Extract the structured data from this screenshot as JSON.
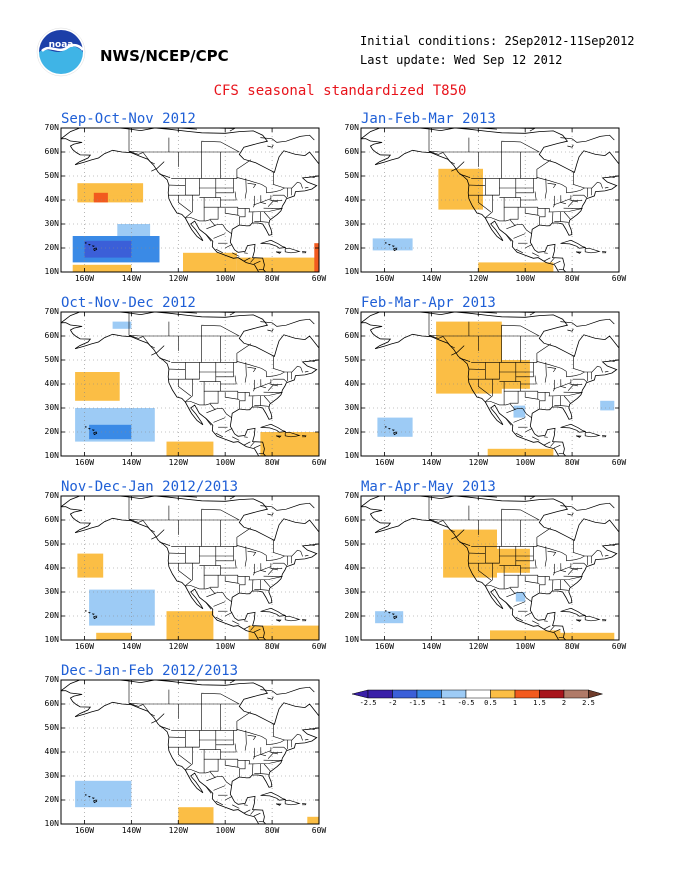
{
  "header": {
    "org": "NWS/NCEP/CPC",
    "initial_conditions": "Initial conditions: 2Sep2012-11Sep2012",
    "last_update": "Last update: Wed Sep 12 2012",
    "title": "CFS seasonal standardized T850",
    "logo_icon": "noaa-logo-icon"
  },
  "axes": {
    "y_ticks": [
      "70N",
      "60N",
      "50N",
      "40N",
      "30N",
      "20N",
      "10N"
    ],
    "x_ticks": [
      "160W",
      "140W",
      "120W",
      "100W",
      "80W",
      "60W"
    ]
  },
  "colors": {
    "title": "#e8141c",
    "panel_title": "#1f5fd6",
    "scale": [
      "#3a1fa8",
      "#3b5fd8",
      "#3a8ae6",
      "#9dcbf5",
      "#ffffff",
      "#ffffff",
      "#fbbe45",
      "#f25a1e",
      "#a8141c",
      "#b07a68",
      "#6e3b2a"
    ]
  },
  "panels": [
    {
      "title": "Sep-Oct-Nov 2012",
      "anomalies": [
        {
          "lat_min": 39,
          "lat_max": 47,
          "lon_min": -163,
          "lon_max": -135,
          "level": 1
        },
        {
          "lat_min": 42,
          "lat_max": 46,
          "lon_min": -150,
          "lon_max": -138,
          "level": 1
        },
        {
          "lat_min": 39,
          "lat_max": 43,
          "lon_min": -156,
          "lon_max": -150,
          "level": 1.5
        },
        {
          "lat_min": 24,
          "lat_max": 30,
          "lon_min": -146,
          "lon_max": -132,
          "level": -0.5
        },
        {
          "lat_min": 14,
          "lat_max": 25,
          "lon_min": -165,
          "lon_max": -128,
          "level": -1
        },
        {
          "lat_min": 16,
          "lat_max": 23,
          "lon_min": -160,
          "lon_max": -140,
          "level": -1.5
        },
        {
          "lat_min": 10,
          "lat_max": 13,
          "lon_min": -165,
          "lon_max": -140,
          "level": 0.5
        },
        {
          "lat_min": 10,
          "lat_max": 18,
          "lon_min": -118,
          "lon_max": -95,
          "level": 0.5
        },
        {
          "lat_min": 10,
          "lat_max": 16,
          "lon_min": -95,
          "lon_max": -60,
          "level": 0.5
        },
        {
          "lat_min": 10,
          "lat_max": 22,
          "lon_min": -62,
          "lon_max": -60,
          "level": 1.5
        }
      ]
    },
    {
      "title": "Jan-Feb-Mar 2013",
      "anomalies": [
        {
          "lat_min": 36,
          "lat_max": 53,
          "lon_min": -137,
          "lon_max": -118,
          "level": 1
        },
        {
          "lat_min": 19,
          "lat_max": 24,
          "lon_min": -165,
          "lon_max": -148,
          "level": -0.5
        },
        {
          "lat_min": 10,
          "lat_max": 14,
          "lon_min": -120,
          "lon_max": -88,
          "level": 0.5
        }
      ]
    },
    {
      "title": "Oct-Nov-Dec 2012",
      "anomalies": [
        {
          "lat_min": 63,
          "lat_max": 66,
          "lon_min": -148,
          "lon_max": -140,
          "level": -0.5
        },
        {
          "lat_min": 33,
          "lat_max": 45,
          "lon_min": -164,
          "lon_max": -145,
          "level": 1
        },
        {
          "lat_min": 16,
          "lat_max": 30,
          "lon_min": -164,
          "lon_max": -130,
          "level": -0.5
        },
        {
          "lat_min": 17,
          "lat_max": 23,
          "lon_min": -158,
          "lon_max": -140,
          "level": -1
        },
        {
          "lat_min": 10,
          "lat_max": 16,
          "lon_min": -125,
          "lon_max": -105,
          "level": 0.5
        },
        {
          "lat_min": 10,
          "lat_max": 20,
          "lon_min": -85,
          "lon_max": -60,
          "level": 0.5
        }
      ]
    },
    {
      "title": "Feb-Mar-Apr 2013",
      "anomalies": [
        {
          "lat_min": 36,
          "lat_max": 66,
          "lon_min": -138,
          "lon_max": -110,
          "level": 1
        },
        {
          "lat_min": 38,
          "lat_max": 50,
          "lon_min": -115,
          "lon_max": -98,
          "level": 1
        },
        {
          "lat_min": 26,
          "lat_max": 31,
          "lon_min": -105,
          "lon_max": -100,
          "level": -0.5
        },
        {
          "lat_min": 29,
          "lat_max": 33,
          "lon_min": -68,
          "lon_max": -62,
          "level": -0.5
        },
        {
          "lat_min": 18,
          "lat_max": 26,
          "lon_min": -163,
          "lon_max": -148,
          "level": -0.5
        },
        {
          "lat_min": 10,
          "lat_max": 13,
          "lon_min": -116,
          "lon_max": -88,
          "level": 0.5
        }
      ]
    },
    {
      "title": "Nov-Dec-Jan 2012/2013",
      "anomalies": [
        {
          "lat_min": 36,
          "lat_max": 46,
          "lon_min": -163,
          "lon_max": -152,
          "level": 1
        },
        {
          "lat_min": 16,
          "lat_max": 31,
          "lon_min": -158,
          "lon_max": -130,
          "level": -0.5
        },
        {
          "lat_min": 10,
          "lat_max": 13,
          "lon_min": -155,
          "lon_max": -140,
          "level": 0.5
        },
        {
          "lat_min": 10,
          "lat_max": 22,
          "lon_min": -125,
          "lon_max": -105,
          "level": 0.5
        },
        {
          "lat_min": 10,
          "lat_max": 16,
          "lon_min": -90,
          "lon_max": -60,
          "level": 0.5
        }
      ]
    },
    {
      "title": "Mar-Apr-May 2013",
      "anomalies": [
        {
          "lat_min": 36,
          "lat_max": 56,
          "lon_min": -135,
          "lon_max": -112,
          "level": 1
        },
        {
          "lat_min": 38,
          "lat_max": 48,
          "lon_min": -115,
          "lon_max": -98,
          "level": 1
        },
        {
          "lat_min": 26,
          "lat_max": 30,
          "lon_min": -104,
          "lon_max": -100,
          "level": -0.5
        },
        {
          "lat_min": 17,
          "lat_max": 22,
          "lon_min": -164,
          "lon_max": -152,
          "level": -0.5
        },
        {
          "lat_min": 10,
          "lat_max": 14,
          "lon_min": -115,
          "lon_max": -85,
          "level": 0.5
        },
        {
          "lat_min": 10,
          "lat_max": 13,
          "lon_min": -85,
          "lon_max": -62,
          "level": 0.5
        }
      ]
    },
    {
      "title": "Dec-Jan-Feb 2012/2013",
      "anomalies": [
        {
          "lat_min": 17,
          "lat_max": 28,
          "lon_min": -164,
          "lon_max": -140,
          "level": -0.5
        },
        {
          "lat_min": 10,
          "lat_max": 17,
          "lon_min": -120,
          "lon_max": -105,
          "level": 0.5
        },
        {
          "lat_min": 10,
          "lat_max": 13,
          "lon_min": -65,
          "lon_max": -60,
          "level": 0.5
        }
      ]
    }
  ],
  "colorbar": {
    "labels": [
      "-2.5",
      "-2",
      "-1.5",
      "-1",
      "-0.5",
      "0.5",
      "1",
      "1.5",
      "2",
      "2.5"
    ]
  }
}
